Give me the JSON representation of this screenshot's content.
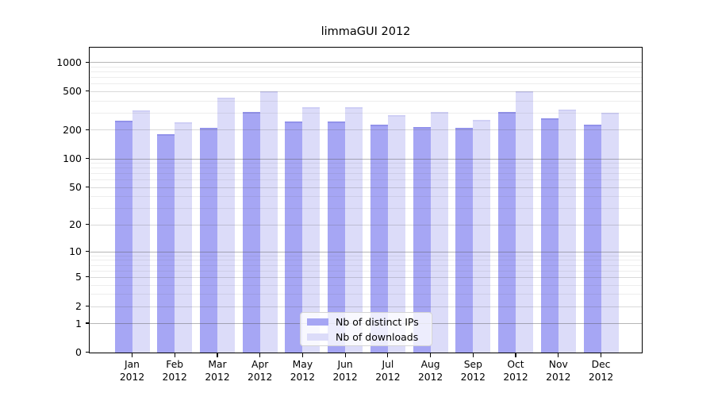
{
  "title": "limmaGUI 2012",
  "legend": {
    "items": [
      {
        "label": "Nb of distinct IPs",
        "color": "#a6a6f4",
        "edge": "#9292ea"
      },
      {
        "label": "Nb of downloads",
        "color": "#dcdcf9",
        "edge": "#cfcff5"
      }
    ]
  },
  "chart_data": {
    "type": "bar",
    "title": "limmaGUI 2012",
    "categories": [
      "Jan 2012",
      "Feb 2012",
      "Mar 2012",
      "Apr 2012",
      "May 2012",
      "Jun 2012",
      "Jul 2012",
      "Aug 2012",
      "Sep 2012",
      "Oct 2012",
      "Nov 2012",
      "Dec 2012"
    ],
    "x": [
      {
        "month": "Jan",
        "year": "2012"
      },
      {
        "month": "Feb",
        "year": "2012"
      },
      {
        "month": "Mar",
        "year": "2012"
      },
      {
        "month": "Apr",
        "year": "2012"
      },
      {
        "month": "May",
        "year": "2012"
      },
      {
        "month": "Jun",
        "year": "2012"
      },
      {
        "month": "Jul",
        "year": "2012"
      },
      {
        "month": "Aug",
        "year": "2012"
      },
      {
        "month": "Sep",
        "year": "2012"
      },
      {
        "month": "Oct",
        "year": "2012"
      },
      {
        "month": "Nov",
        "year": "2012"
      },
      {
        "month": "Dec",
        "year": "2012"
      }
    ],
    "series": [
      {
        "name": "Nb of distinct IPs",
        "color": "#a6a6f4",
        "edge": "#9292ea",
        "values": [
          250,
          180,
          210,
          310,
          245,
          245,
          225,
          215,
          210,
          305,
          265,
          225
        ]
      },
      {
        "name": "Nb of downloads",
        "color": "#dcdcf9",
        "edge": "#cfcff5",
        "values": [
          320,
          240,
          430,
          500,
          345,
          345,
          285,
          310,
          255,
          500,
          325,
          300
        ]
      }
    ],
    "y_axis": {
      "scale": "log1p",
      "ticks": [
        1000,
        500,
        100,
        200,
        50,
        20,
        10,
        5,
        2,
        1,
        0
      ],
      "decade_ticks": [
        1,
        10,
        100,
        1000
      ],
      "ylim": [
        0,
        1414
      ]
    },
    "xlabel": "",
    "ylabel": "",
    "grid": true,
    "legend_position": "lower center"
  }
}
